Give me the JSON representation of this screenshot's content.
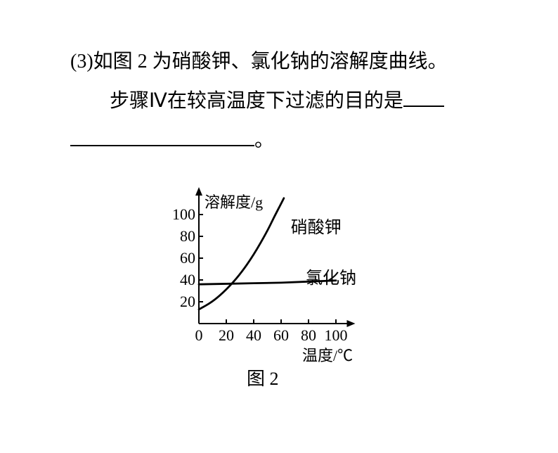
{
  "question": {
    "number": "(3)",
    "line1_a": "如图 2 为硝酸钾、氯化钠的溶解度曲线。",
    "line2_a": "步骤Ⅳ在较高温度下过滤的目的是",
    "period": "。"
  },
  "chart": {
    "type": "line",
    "y_axis_label": "溶解度/g",
    "x_axis_label": "温度/℃",
    "x_ticks": [
      0,
      20,
      40,
      60,
      80,
      100
    ],
    "y_ticks": [
      20,
      40,
      60,
      80,
      100
    ],
    "xlim": [
      0,
      110
    ],
    "ylim": [
      0,
      120
    ],
    "curves": {
      "kno3": {
        "label": "硝酸钾",
        "data": [
          [
            0,
            13
          ],
          [
            10,
            20
          ],
          [
            20,
            31
          ],
          [
            30,
            45
          ],
          [
            40,
            63
          ],
          [
            50,
            85
          ],
          [
            55,
            98
          ],
          [
            60,
            110
          ],
          [
            62,
            115
          ]
        ],
        "color": "#000000",
        "width": 2.8
      },
      "nacl": {
        "label": "氯化钠",
        "data": [
          [
            0,
            36
          ],
          [
            20,
            36.5
          ],
          [
            40,
            37
          ],
          [
            60,
            37.5
          ],
          [
            80,
            38.5
          ],
          [
            100,
            39.5
          ]
        ],
        "color": "#000000",
        "width": 2.8
      }
    },
    "caption": "图 2",
    "background_color": "#ffffff",
    "axis_color": "#000000",
    "axis_width": 2
  },
  "layout": {
    "blank1_width": 58,
    "blank2_width": 262,
    "origin_x": 58,
    "origin_y": 225,
    "scale_x": 1.95,
    "scale_y": 1.55
  }
}
